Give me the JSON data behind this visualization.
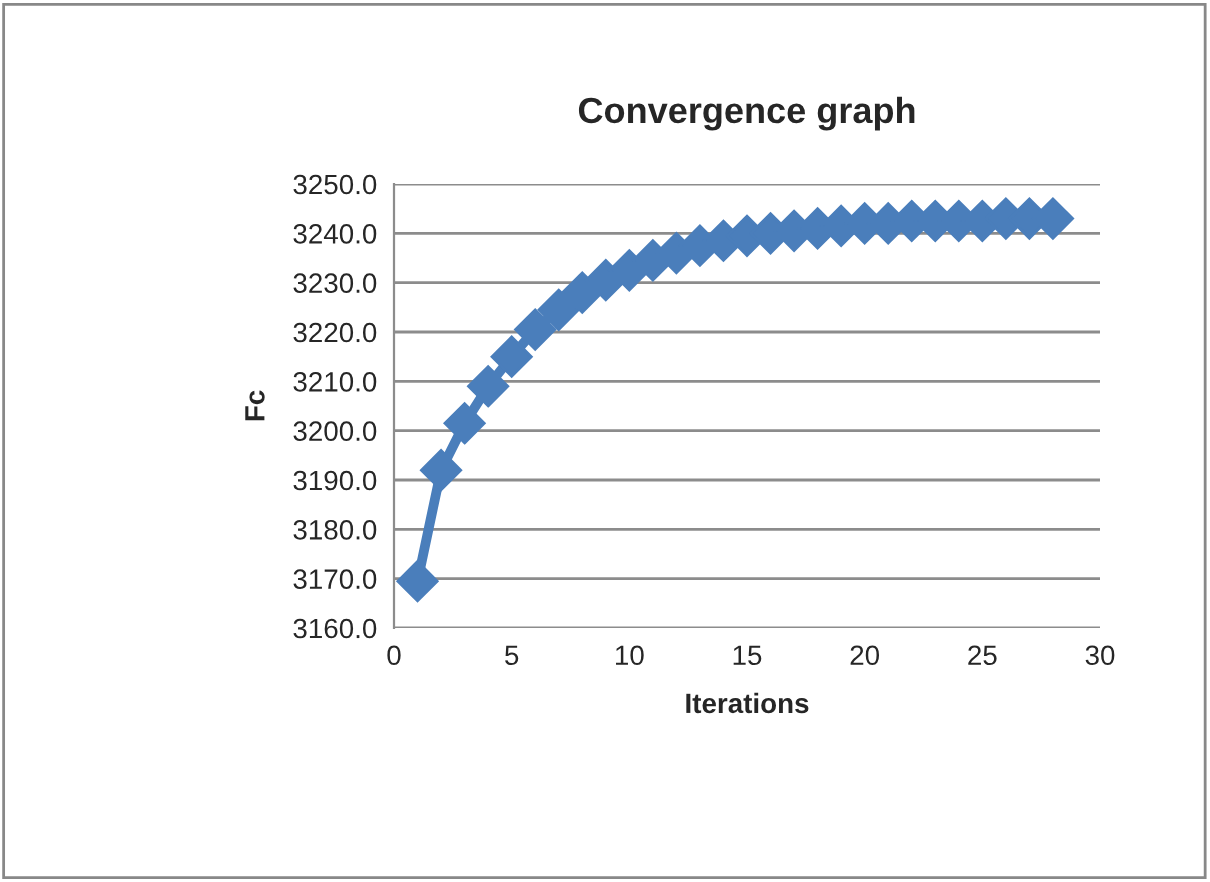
{
  "chart_data": {
    "type": "line",
    "title": "Convergence graph",
    "xlabel": "Iterations",
    "ylabel": "Fc",
    "x": [
      1,
      2,
      3,
      4,
      5,
      6,
      7,
      8,
      9,
      10,
      11,
      12,
      13,
      14,
      15,
      16,
      17,
      18,
      19,
      20,
      21,
      22,
      23,
      24,
      25,
      26,
      27,
      28
    ],
    "series": [
      {
        "color": "#4a7ebb",
        "values": [
          3169.5,
          3192,
          3201.5,
          3209,
          3215,
          3220.5,
          3224.5,
          3228,
          3230.5,
          3232.5,
          3234.5,
          3236,
          3237.5,
          3238.5,
          3239.5,
          3240,
          3240.5,
          3241,
          3241.5,
          3242,
          3242,
          3242.5,
          3242.5,
          3242.5,
          3242.5,
          3243,
          3243,
          3243
        ]
      }
    ],
    "xlim": [
      0,
      30
    ],
    "xticks": [
      0,
      5,
      10,
      15,
      20,
      25,
      30
    ],
    "ylim": [
      3160,
      3250
    ],
    "yticks": [
      {
        "value": 3160,
        "label": "3160.0"
      },
      {
        "value": 3170,
        "label": "3170.0"
      },
      {
        "value": 3180,
        "label": "3180.0"
      },
      {
        "value": 3190,
        "label": "3190.0"
      },
      {
        "value": 3200,
        "label": "3200.0"
      },
      {
        "value": 3210,
        "label": "3210.0"
      },
      {
        "value": 3220,
        "label": "3220.0"
      },
      {
        "value": 3230,
        "label": "3230.0"
      },
      {
        "value": 3240,
        "label": "3240.0"
      },
      {
        "value": 3250,
        "label": "3250.0"
      }
    ],
    "grid": "y",
    "marker": "diamond",
    "line_style": "solid",
    "legend": false
  }
}
